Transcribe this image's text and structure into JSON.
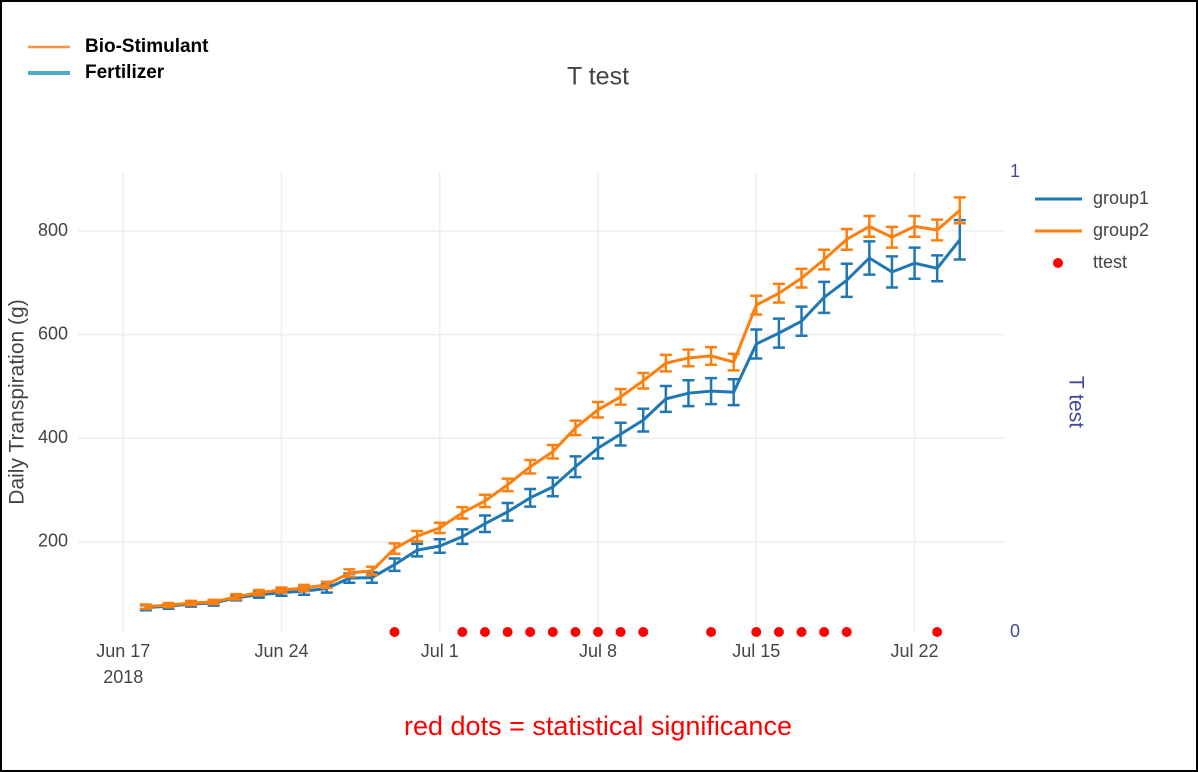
{
  "chart_data": {
    "type": "line",
    "title": "T test",
    "ylabel": "Daily Transpiration (g)",
    "y2label": "T test",
    "note": "red dots = statistical significance",
    "legend_annotation": [
      {
        "label": "Bio-Stimulant",
        "color": "#f79646"
      },
      {
        "label": "Fertilizer",
        "color": "#4bacc6"
      }
    ],
    "legend": "right",
    "grid": true,
    "x": [
      "2018-06-18",
      "2018-06-19",
      "2018-06-20",
      "2018-06-21",
      "2018-06-22",
      "2018-06-23",
      "2018-06-24",
      "2018-06-25",
      "2018-06-26",
      "2018-06-27",
      "2018-06-28",
      "2018-06-29",
      "2018-06-30",
      "2018-07-01",
      "2018-07-02",
      "2018-07-03",
      "2018-07-04",
      "2018-07-05",
      "2018-07-06",
      "2018-07-07",
      "2018-07-08",
      "2018-07-09",
      "2018-07-10",
      "2018-07-11",
      "2018-07-12",
      "2018-07-13",
      "2018-07-14",
      "2018-07-15",
      "2018-07-16",
      "2018-07-17",
      "2018-07-18",
      "2018-07-19",
      "2018-07-20",
      "2018-07-21",
      "2018-07-22",
      "2018-07-23",
      "2018-07-24"
    ],
    "xlim": [
      "2018-06-15",
      "2018-07-26"
    ],
    "xticks": [
      {
        "value": "2018-06-17",
        "label": "Jun 17\n2018"
      },
      {
        "value": "2018-06-24",
        "label": "Jun 24"
      },
      {
        "value": "2018-07-01",
        "label": "Jul 1"
      },
      {
        "value": "2018-07-08",
        "label": "Jul 8"
      },
      {
        "value": "2018-07-15",
        "label": "Jul 15"
      },
      {
        "value": "2018-07-22",
        "label": "Jul 22"
      }
    ],
    "ylim": [
      26,
      914
    ],
    "yticks": [
      200,
      400,
      600,
      800
    ],
    "y2lim": [
      0,
      1
    ],
    "y2ticks": [
      0,
      1
    ],
    "series": [
      {
        "name": "group1",
        "color": "#1f77b4",
        "values": [
          73,
          76,
          80,
          82,
          92,
          98,
          102,
          105,
          110,
          130,
          131,
          156,
          184,
          192,
          210,
          235,
          258,
          285,
          306,
          345,
          381,
          408,
          435,
          476,
          487,
          491,
          489,
          582,
          603,
          626,
          672,
          705,
          748,
          721,
          738,
          728,
          783
        ],
        "error": [
          5,
          5,
          5,
          5,
          5,
          6,
          6,
          7,
          8,
          9,
          10,
          12,
          12,
          13,
          14,
          16,
          17,
          17,
          18,
          20,
          20,
          22,
          22,
          25,
          25,
          25,
          25,
          28,
          28,
          28,
          30,
          32,
          32,
          30,
          30,
          25,
          38
        ]
      },
      {
        "name": "group2",
        "color": "#ff7f0e",
        "values": [
          75,
          78,
          82,
          84,
          94,
          102,
          107,
          111,
          117,
          140,
          144,
          187,
          211,
          227,
          256,
          279,
          310,
          345,
          374,
          420,
          455,
          480,
          511,
          545,
          555,
          559,
          547,
          657,
          680,
          709,
          745,
          784,
          809,
          788,
          809,
          802,
          840
        ],
        "error": [
          4,
          4,
          4,
          4,
          5,
          5,
          5,
          6,
          6,
          7,
          8,
          10,
          10,
          10,
          11,
          12,
          12,
          13,
          13,
          14,
          15,
          15,
          15,
          16,
          16,
          17,
          16,
          18,
          18,
          18,
          19,
          20,
          20,
          20,
          20,
          20,
          25
        ]
      },
      {
        "name": "ttest",
        "color": "#ff0000",
        "axis": "y2",
        "mode": "markers",
        "x": [
          "2018-06-29",
          "2018-07-02",
          "2018-07-03",
          "2018-07-04",
          "2018-07-05",
          "2018-07-06",
          "2018-07-07",
          "2018-07-08",
          "2018-07-09",
          "2018-07-10",
          "2018-07-13",
          "2018-07-15",
          "2018-07-16",
          "2018-07-17",
          "2018-07-18",
          "2018-07-19",
          "2018-07-23"
        ],
        "values": [
          0,
          0,
          0,
          0,
          0,
          0,
          0,
          0,
          0,
          0,
          0,
          0,
          0,
          0,
          0,
          0,
          0
        ]
      }
    ]
  }
}
